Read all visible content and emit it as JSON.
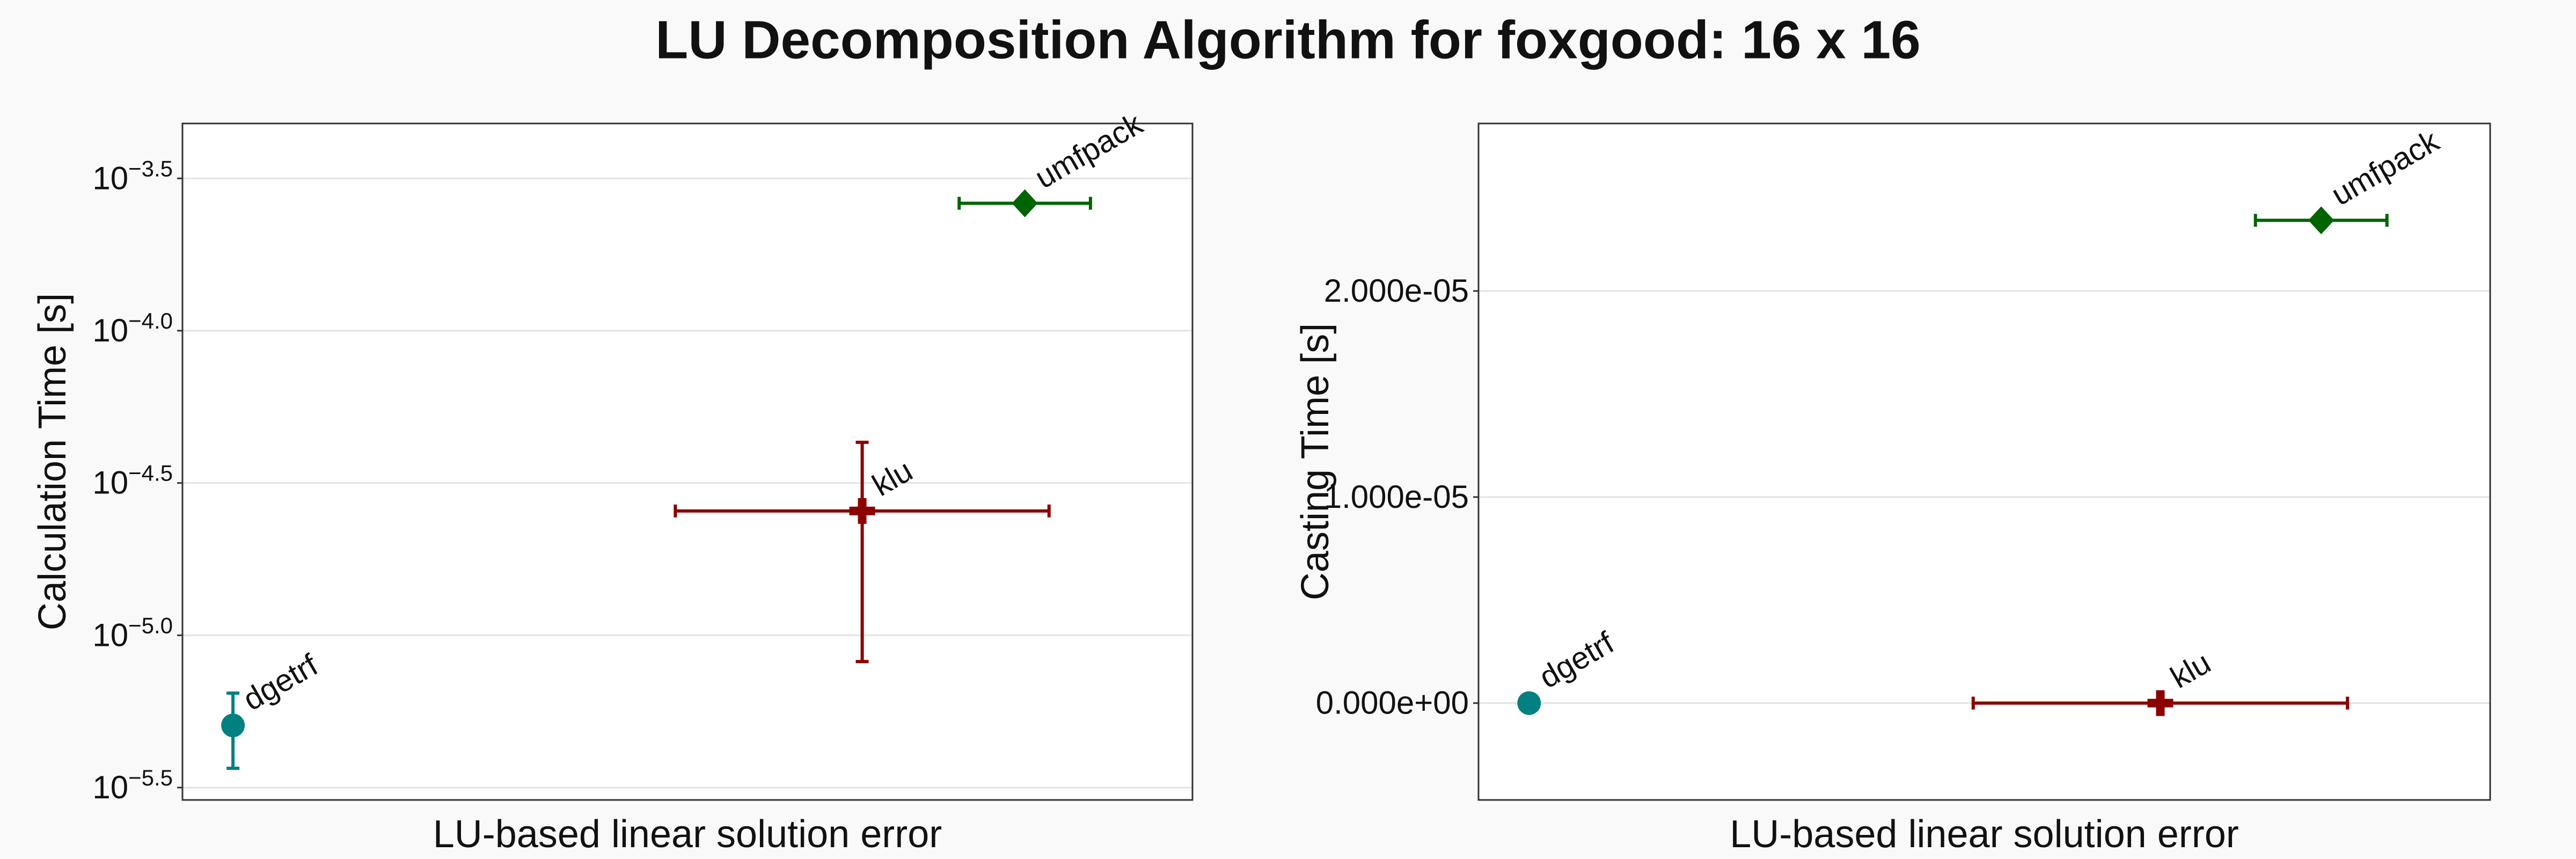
{
  "title": "LU Decomposition Algorithm for foxgood: 16 x 16",
  "chart_data": [
    {
      "type": "scatter",
      "xlabel": "LU-based linear solution error",
      "ylabel": "Calculation Time [s]",
      "yscale": "log",
      "grid": true,
      "xlim": [
        0,
        1
      ],
      "ylim": [
        2.88e-06,
        0.000479
      ],
      "yticks": [
        {
          "value": 0.000316228,
          "label": "10−3.5"
        },
        {
          "value": 0.0001,
          "label": "10−4.0"
        },
        {
          "value": 3.16228e-05,
          "label": "10−4.5"
        },
        {
          "value": 1e-05,
          "label": "10−5.0"
        },
        {
          "value": 3.16228e-06,
          "label": "10−5.5"
        }
      ],
      "series": [
        {
          "name": "dgetrf",
          "color": "#008080",
          "marker": "circle",
          "x": [
            0.05
          ],
          "values": [
            5.06e-06
          ],
          "yerr": [
            1.4e-06
          ]
        },
        {
          "name": "klu",
          "color": "#8b0000",
          "marker": "plus",
          "x": [
            0.673
          ],
          "values": [
            2.56e-05
          ],
          "xerr": [
            0.185
          ],
          "yerr": [
            1.74e-05
          ]
        },
        {
          "name": "umfpack",
          "color": "#006400",
          "marker": "diamond",
          "x": [
            0.834
          ],
          "values": [
            0.000262
          ],
          "xerr": [
            0.065
          ]
        }
      ]
    },
    {
      "type": "scatter",
      "xlabel": "LU-based linear solution error",
      "ylabel": "Casting Time [s]",
      "yscale": "linear",
      "grid": true,
      "xlim": [
        0,
        1
      ],
      "ylim": [
        -4.7e-06,
        2.813e-05
      ],
      "yticks": [
        {
          "value": 0,
          "label": "0.000e+00"
        },
        {
          "value": 1e-05,
          "label": "1.000e-05"
        },
        {
          "value": 2e-05,
          "label": "2.000e-05"
        }
      ],
      "series": [
        {
          "name": "dgetrf",
          "color": "#008080",
          "marker": "circle",
          "x": [
            0.05
          ],
          "values": [
            0
          ]
        },
        {
          "name": "klu",
          "color": "#8b0000",
          "marker": "plus",
          "x": [
            0.674
          ],
          "values": [
            0
          ],
          "xerr": [
            0.185
          ]
        },
        {
          "name": "umfpack",
          "color": "#006400",
          "marker": "diamond",
          "x": [
            0.833
          ],
          "values": [
            2.343e-05
          ],
          "xerr": [
            0.065
          ]
        }
      ]
    }
  ]
}
